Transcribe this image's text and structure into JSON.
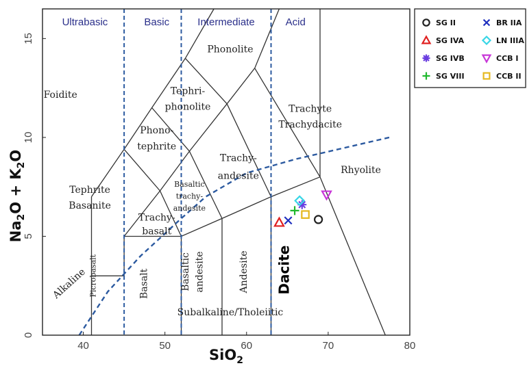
{
  "chart_data": {
    "type": "scatter",
    "xlabel": "SiO2",
    "ylabel": "Na2O + K2O",
    "xlim": [
      35,
      80
    ],
    "ylim": [
      0,
      16.5
    ],
    "x_ticks": [
      "40",
      "50",
      "60",
      "70",
      "80"
    ],
    "y_ticks": [
      "0",
      "5",
      "10",
      "15"
    ],
    "grid": false,
    "legend_position": "outside right, top",
    "divisions": [
      {
        "label": "Ultrabasic",
        "x": 40.2
      },
      {
        "label": "Basic",
        "x": 49.0
      },
      {
        "label": "Intermediate",
        "x": 57.5
      },
      {
        "label": "Acid",
        "x": 66.0
      }
    ],
    "division_lines_x": [
      45,
      52,
      63
    ],
    "fields": [
      {
        "label": "Foidite",
        "x": 37.2,
        "y": 12.0
      },
      {
        "label": "Phonolite",
        "x": 58.0,
        "y": 14.3
      },
      {
        "label": "Tephri-",
        "x": 52.8,
        "y": 12.2
      },
      {
        "label": "phonolite",
        "x": 52.8,
        "y": 11.4
      },
      {
        "label": "Trachyte",
        "x": 67.8,
        "y": 11.3
      },
      {
        "label": "Trachydacite",
        "x": 67.8,
        "y": 10.5
      },
      {
        "label": "Phono-",
        "x": 49.0,
        "y": 10.2
      },
      {
        "label": "tephrite",
        "x": 49.0,
        "y": 9.4
      },
      {
        "label": "Trachy-",
        "x": 59.0,
        "y": 8.8
      },
      {
        "label": "andesite",
        "x": 59.0,
        "y": 7.9
      },
      {
        "label": "Tephrite",
        "x": 40.8,
        "y": 7.2
      },
      {
        "label": "Basanite",
        "x": 40.8,
        "y": 6.4
      },
      {
        "label": "Trachy-",
        "x": 49.0,
        "y": 5.8
      },
      {
        "label": "basalt",
        "x": 49.0,
        "y": 5.1
      },
      {
        "label": "Rhyolite",
        "x": 74.0,
        "y": 8.2
      },
      {
        "label": "Alkaline",
        "x": 38.5,
        "y": 2.5
      },
      {
        "label": "Subalkaline/Tholeiitic",
        "x": 58.0,
        "y": 1.0
      }
    ],
    "small_fields": [
      {
        "label": "Basaltic",
        "x": 53.0,
        "y": 7.5
      },
      {
        "label": "trachy-",
        "x": 53.0,
        "y": 6.9
      },
      {
        "label": "andesite",
        "x": 53.0,
        "y": 6.3
      }
    ],
    "vertical_fields": [
      {
        "label": "Picrobasalt",
        "x": 41.5,
        "y": 3.0
      },
      {
        "label": "Basalt",
        "x": 47.8,
        "y": 2.6
      },
      {
        "label": "Basaltic",
        "x": 52.9,
        "y": 3.2
      },
      {
        "label": "andesite",
        "x": 54.6,
        "y": 3.2
      },
      {
        "label": "Andesite",
        "x": 60.0,
        "y": 3.2
      }
    ],
    "bold_field": {
      "label": "Dacite",
      "x": 65.2,
      "y": 3.3
    },
    "series": [
      {
        "name": "SG II",
        "marker": "circle",
        "color": "#222222",
        "points": [
          {
            "x": 68.8,
            "y": 5.85
          }
        ]
      },
      {
        "name": "SG IVA",
        "marker": "triangle-up",
        "color": "#e02020",
        "points": [
          {
            "x": 64.0,
            "y": 5.7
          }
        ]
      },
      {
        "name": "SG IVB",
        "marker": "asterisk",
        "color": "#6a3de0",
        "points": [
          {
            "x": 66.8,
            "y": 6.6
          }
        ]
      },
      {
        "name": "SG VIII",
        "marker": "plus",
        "color": "#1fb82d",
        "points": [
          {
            "x": 65.9,
            "y": 6.3
          }
        ]
      },
      {
        "name": "BR IIA",
        "marker": "x",
        "color": "#1f2fbf",
        "points": [
          {
            "x": 65.1,
            "y": 5.8
          }
        ]
      },
      {
        "name": "LN IIIA",
        "marker": "diamond",
        "color": "#38d6e6",
        "points": [
          {
            "x": 66.5,
            "y": 6.8
          }
        ]
      },
      {
        "name": "CCB I",
        "marker": "triangle-down",
        "color": "#c837d8",
        "points": [
          {
            "x": 69.8,
            "y": 7.1
          }
        ]
      },
      {
        "name": "CCB II",
        "marker": "square",
        "color": "#e5b820",
        "points": [
          {
            "x": 67.2,
            "y": 6.1
          }
        ]
      }
    ],
    "colors": {
      "division_line": "#2c5aa0",
      "division_label": "#2a2f8a",
      "boundary": "#333333"
    }
  }
}
